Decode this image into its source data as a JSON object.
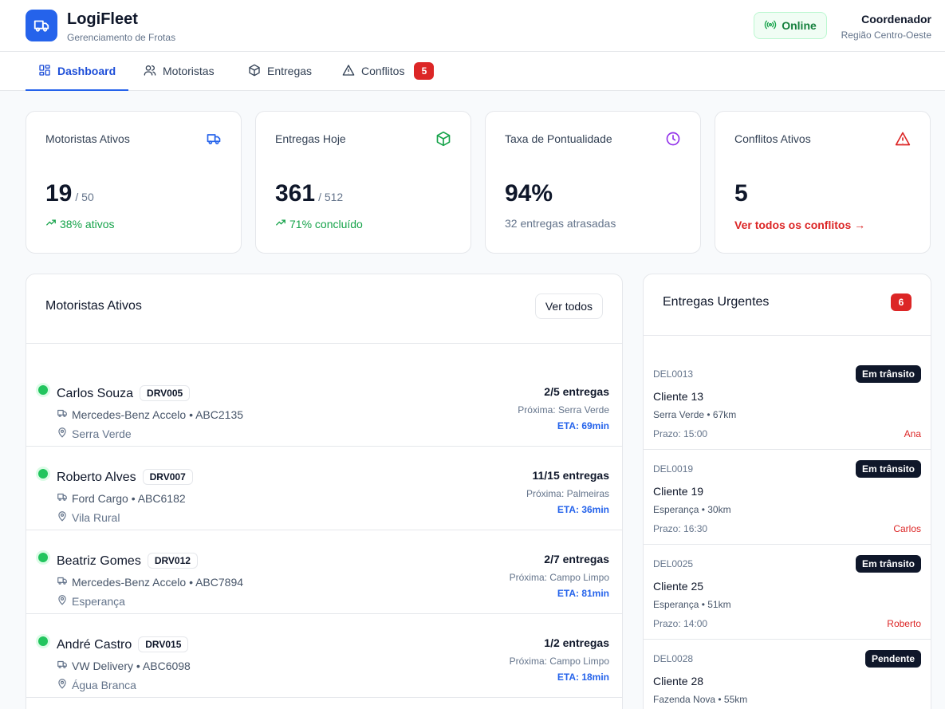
{
  "app": {
    "title": "LogiFleet",
    "subtitle": "Gerenciamento de Frotas"
  },
  "header": {
    "status": "Online",
    "user_role": "Coordenador",
    "user_region": "Região Centro-Oeste"
  },
  "tabs": [
    {
      "label": "Dashboard",
      "icon": "dashboard-icon"
    },
    {
      "label": "Motoristas",
      "icon": "users-icon"
    },
    {
      "label": "Entregas",
      "icon": "package-icon"
    },
    {
      "label": "Conflitos",
      "icon": "alert-triangle-icon",
      "badge": "5"
    }
  ],
  "stats": [
    {
      "title": "Motoristas Ativos",
      "value": "19",
      "sub": "/ 50",
      "foot": "38% ativos",
      "icon": "truck-icon"
    },
    {
      "title": "Entregas Hoje",
      "value": "361",
      "sub": "/ 512",
      "foot": "71% concluído",
      "icon": "package-icon"
    },
    {
      "title": "Taxa de Pontualidade",
      "value": "94%",
      "foot": "32 entregas atrasadas",
      "icon": "clock-icon"
    },
    {
      "title": "Conflitos Ativos",
      "value": "5",
      "foot": "Ver todos os conflitos →",
      "icon": "alert-triangle-icon"
    }
  ],
  "drivers_panel": {
    "title": "Motoristas Ativos",
    "view_all": "Ver todos",
    "drivers": [
      {
        "name": "Carlos Souza",
        "code": "DRV005",
        "vehicle": "Mercedes-Benz Accelo • ABC2135",
        "location": "Serra Verde",
        "count": "2/5 entregas",
        "next": "Próxima: Serra Verde",
        "eta": "ETA: 69min"
      },
      {
        "name": "Roberto Alves",
        "code": "DRV007",
        "vehicle": "Ford Cargo • ABC6182",
        "location": "Vila Rural",
        "count": "11/15 entregas",
        "next": "Próxima: Palmeiras",
        "eta": "ETA: 36min"
      },
      {
        "name": "Beatriz Gomes",
        "code": "DRV012",
        "vehicle": "Mercedes-Benz Accelo • ABC7894",
        "location": "Esperança",
        "count": "2/7 entregas",
        "next": "Próxima: Campo Limpo",
        "eta": "ETA: 81min"
      },
      {
        "name": "André Castro",
        "code": "DRV015",
        "vehicle": "VW Delivery • ABC6098",
        "location": "Água Branca",
        "count": "1/2 entregas",
        "next": "Próxima: Campo Limpo",
        "eta": "ETA: 18min"
      }
    ]
  },
  "urgent_panel": {
    "title": "Entregas Urgentes",
    "count": "6",
    "deliveries": [
      {
        "id": "DEL0013",
        "status": "Em trânsito",
        "client": "Cliente 13",
        "location": "Serra Verde • 67km",
        "deadline": "Prazo: 15:00",
        "driver": "Ana"
      },
      {
        "id": "DEL0019",
        "status": "Em trânsito",
        "client": "Cliente 19",
        "location": "Esperança • 30km",
        "deadline": "Prazo: 16:30",
        "driver": "Carlos"
      },
      {
        "id": "DEL0025",
        "status": "Em trânsito",
        "client": "Cliente 25",
        "location": "Esperança • 51km",
        "deadline": "Prazo: 14:00",
        "driver": "Roberto"
      },
      {
        "id": "DEL0028",
        "status": "Pendente",
        "client": "Cliente 28",
        "location": "Fazenda Nova • 55km",
        "deadline": "",
        "driver": ""
      }
    ]
  },
  "colors": {
    "primary": "#2563eb",
    "success": "#16a34a",
    "danger": "#dc2626",
    "purple": "#9333ea"
  }
}
